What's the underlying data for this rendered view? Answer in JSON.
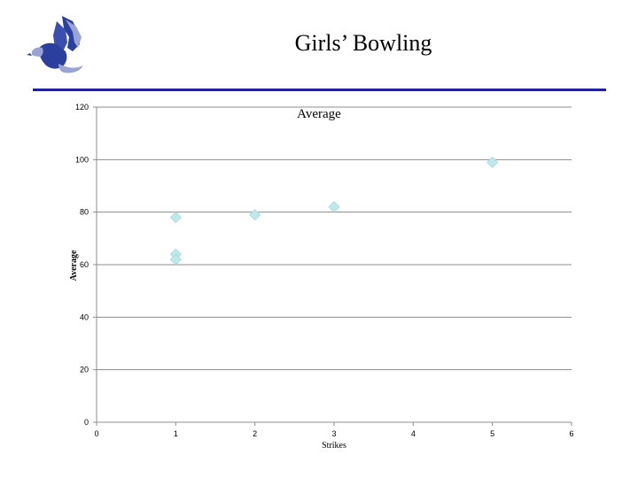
{
  "slide": {
    "title": "Girls’ Bowling"
  },
  "logo": {
    "icon": "eagle-logo-icon",
    "colors": {
      "primary": "#2b3f9e",
      "secondary": "#9aa3d6"
    }
  },
  "accent_color": "#1f1f9f",
  "chart_data": {
    "type": "scatter",
    "title": "Average",
    "xlabel": "Strikes",
    "ylabel": "Average",
    "xlim": [
      0,
      6
    ],
    "ylim": [
      0,
      120
    ],
    "x_ticks": [
      0,
      1,
      2,
      3,
      4,
      5,
      6
    ],
    "y_ticks": [
      0,
      20,
      40,
      60,
      80,
      100,
      120
    ],
    "grid": "horizontal",
    "marker": "diamond",
    "marker_color": "#bfe8ea",
    "series": [
      {
        "points": [
          {
            "x": 1,
            "y": 78
          },
          {
            "x": 1,
            "y": 64
          },
          {
            "x": 1,
            "y": 62
          },
          {
            "x": 2,
            "y": 79
          },
          {
            "x": 3,
            "y": 82
          },
          {
            "x": 5,
            "y": 99
          }
        ]
      }
    ]
  }
}
